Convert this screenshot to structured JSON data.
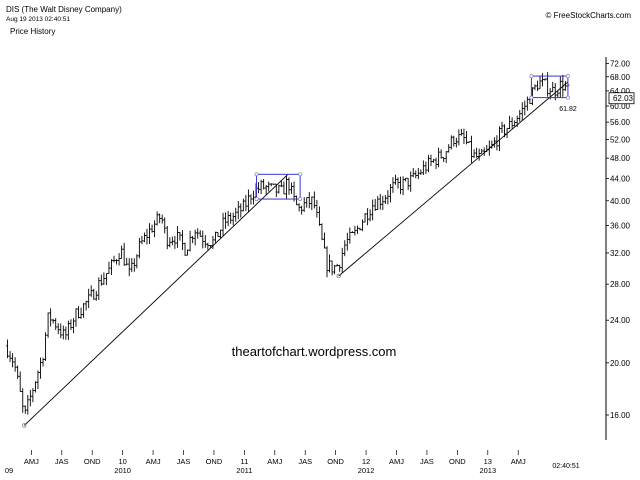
{
  "header": {
    "title": "DIS (The Walt Disney Company)",
    "timestamp": "Aug 19 2013 02:40:51",
    "subtitle": "Price History",
    "copyright": "© FreeStockCharts.com"
  },
  "chart_data": {
    "type": "ohlc",
    "title": "DIS (The Walt Disney Company)",
    "subtitle": "Price History",
    "scale": "log",
    "ylim": [
      14.5,
      74
    ],
    "xlim": [
      0,
      56
    ],
    "yticks": [
      "16.00",
      "20.00",
      "24.00",
      "28.00",
      "32.00",
      "36.00",
      "40.00",
      "44.00",
      "48.00",
      "52.00",
      "56.00",
      "60.00",
      "64.00",
      "68.00",
      "72.00"
    ],
    "current_price": "62.03",
    "low_marker": "61.82",
    "xticks": [
      {
        "x": 2.5,
        "top": "AMJ",
        "bottom": ""
      },
      {
        "x": 5.5,
        "top": "JAS",
        "bottom": ""
      },
      {
        "x": 8.5,
        "top": "OND",
        "bottom": ""
      },
      {
        "x": 11.5,
        "top": "10",
        "bottom": "2010"
      },
      {
        "x": 14.5,
        "top": "AMJ",
        "bottom": ""
      },
      {
        "x": 17.5,
        "top": "JAS",
        "bottom": ""
      },
      {
        "x": 20.5,
        "top": "OND",
        "bottom": ""
      },
      {
        "x": 23.5,
        "top": "11",
        "bottom": "2011"
      },
      {
        "x": 26.5,
        "top": "AMJ",
        "bottom": ""
      },
      {
        "x": 29.5,
        "top": "JAS",
        "bottom": ""
      },
      {
        "x": 32.5,
        "top": "OND",
        "bottom": ""
      },
      {
        "x": 35.5,
        "top": "12",
        "bottom": "2012"
      },
      {
        "x": 38.5,
        "top": "AMJ",
        "bottom": ""
      },
      {
        "x": 41.5,
        "top": "JAS",
        "bottom": ""
      },
      {
        "x": 44.5,
        "top": "OND",
        "bottom": ""
      },
      {
        "x": 47.5,
        "top": "13",
        "bottom": "2013"
      },
      {
        "x": 50.5,
        "top": "AMJ",
        "bottom": ""
      }
    ],
    "first_year_label": "09",
    "time_label": "02:40:51",
    "price_path": [
      [
        0.0,
        21.5
      ],
      [
        0.8,
        20.0
      ],
      [
        1.8,
        15.8
      ],
      [
        2.5,
        17.5
      ],
      [
        3.6,
        20.5
      ],
      [
        4.2,
        24.5
      ],
      [
        5.0,
        23.5
      ],
      [
        5.8,
        22.3
      ],
      [
        6.8,
        24.5
      ],
      [
        8.2,
        26.2
      ],
      [
        9.3,
        28.3
      ],
      [
        10.3,
        30.0
      ],
      [
        11.3,
        32.5
      ],
      [
        12.2,
        29.0
      ],
      [
        13.2,
        33.0
      ],
      [
        14.3,
        35.5
      ],
      [
        15.3,
        37.5
      ],
      [
        15.8,
        34.0
      ],
      [
        16.8,
        34.3
      ],
      [
        17.7,
        32.5
      ],
      [
        18.6,
        35.5
      ],
      [
        19.5,
        34.0
      ],
      [
        20.5,
        33.5
      ],
      [
        21.5,
        36.5
      ],
      [
        22.5,
        37.5
      ],
      [
        23.5,
        39.0
      ],
      [
        24.3,
        41.5
      ],
      [
        25.2,
        42.5
      ],
      [
        26.2,
        42.0
      ],
      [
        27.2,
        41.5
      ],
      [
        27.8,
        43.5
      ],
      [
        28.3,
        40.5
      ],
      [
        28.8,
        38.5
      ],
      [
        29.5,
        39.5
      ],
      [
        30.3,
        40.0
      ],
      [
        31.0,
        34.5
      ],
      [
        31.6,
        30.5
      ],
      [
        32.2,
        30.0
      ],
      [
        32.8,
        30.5
      ],
      [
        33.5,
        33.5
      ],
      [
        34.3,
        34.5
      ],
      [
        35.2,
        37.0
      ],
      [
        36.2,
        39.5
      ],
      [
        37.2,
        40.5
      ],
      [
        38.2,
        42.5
      ],
      [
        39.2,
        43.0
      ],
      [
        40.2,
        44.0
      ],
      [
        41.2,
        46.0
      ],
      [
        42.2,
        47.5
      ],
      [
        43.2,
        49.0
      ],
      [
        44.2,
        52.5
      ],
      [
        45.2,
        52.0
      ],
      [
        46.0,
        48.5
      ],
      [
        46.8,
        48.0
      ],
      [
        47.8,
        50.0
      ],
      [
        48.8,
        53.5
      ],
      [
        49.8,
        55.5
      ],
      [
        50.8,
        58.5
      ],
      [
        51.8,
        63.0
      ],
      [
        52.5,
        66.5
      ],
      [
        53.2,
        65.5
      ],
      [
        54.0,
        64.0
      ],
      [
        54.8,
        66.0
      ],
      [
        55.6,
        63.5
      ]
    ],
    "trendlines": [
      {
        "from": [
          1.8,
          15.3
        ],
        "to": [
          27.8,
          44.8
        ]
      },
      {
        "from": [
          32.8,
          29.0
        ],
        "to": [
          55.4,
          66.5
        ]
      }
    ],
    "boxes": [
      {
        "x0": 24.7,
        "x1": 29.0,
        "y0": 40.3,
        "y1": 44.8
      },
      {
        "x0": 51.8,
        "x1": 55.4,
        "y0": 62.2,
        "y1": 68.2
      }
    ],
    "watermark": "theartofchart.wordpress.com"
  },
  "colors": {
    "background": "#ffffff",
    "bars": "#000000",
    "trendline": "#000000",
    "box": "#3a34d4",
    "axis": "#000000"
  }
}
